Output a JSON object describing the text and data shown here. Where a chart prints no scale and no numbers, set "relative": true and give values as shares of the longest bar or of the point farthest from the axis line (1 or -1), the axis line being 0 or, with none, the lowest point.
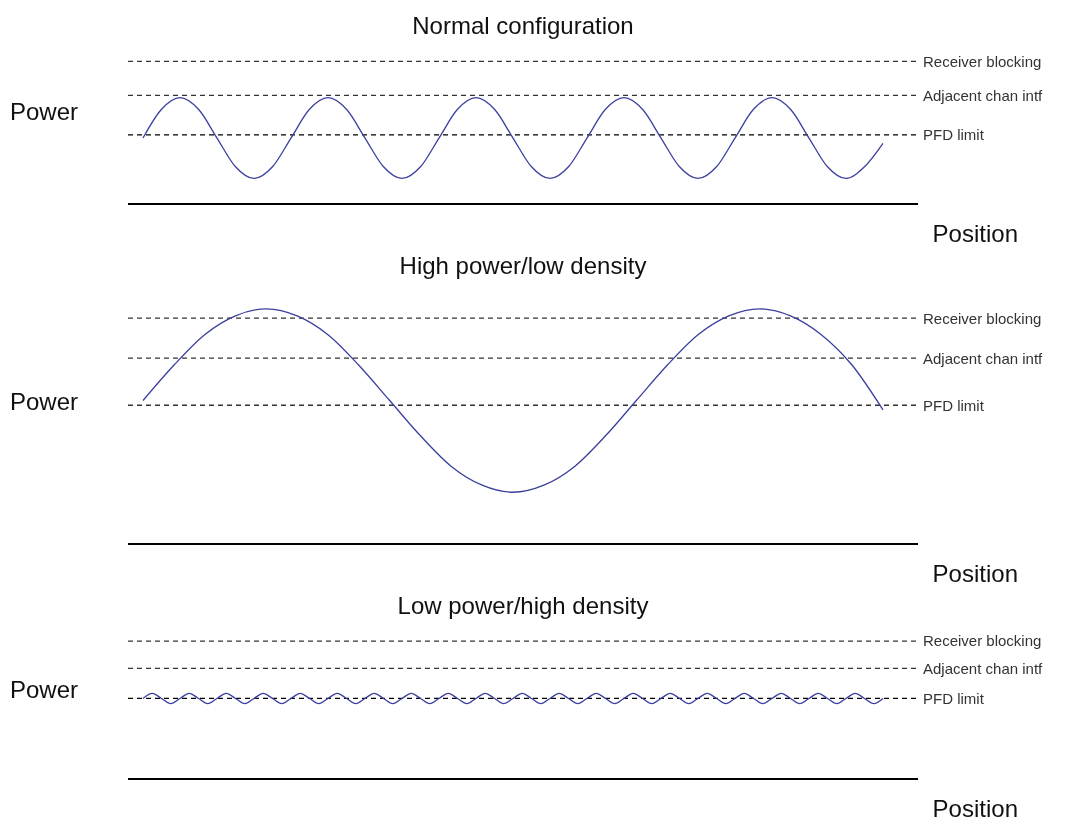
{
  "chart_data": [
    {
      "type": "line",
      "title": "Normal configuration",
      "xlabel": "Position",
      "ylabel": "Power",
      "relative": true,
      "grid": false,
      "legend": false,
      "marker": "none",
      "line_style": "solid",
      "categories": [
        null,
        null,
        null,
        null,
        null,
        null,
        null,
        null,
        null,
        null,
        null,
        null,
        null,
        null,
        null,
        null,
        null,
        null,
        null,
        null,
        null,
        null,
        null,
        null,
        null,
        null,
        null,
        null,
        null,
        null,
        null,
        null,
        null,
        null,
        null,
        null,
        null,
        null,
        null,
        null,
        null
      ],
      "series": [
        {
          "color": "#3a3f9e",
          "values": [
            0.62,
            0.89,
            1.0,
            0.89,
            0.62,
            0.35,
            0.24,
            0.35,
            0.62,
            0.89,
            1.0,
            0.89,
            0.62,
            0.35,
            0.24,
            0.35,
            0.62,
            0.89,
            1.0,
            0.89,
            0.62,
            0.35,
            0.24,
            0.35,
            0.62,
            0.89,
            1.0,
            0.89,
            0.62,
            0.35,
            0.24,
            0.35,
            0.62,
            0.89,
            1.0,
            0.89,
            0.62,
            0.35,
            0.24,
            0.35,
            0.57
          ]
        }
      ],
      "ref_lines": [
        {
          "axis": "y",
          "value": 1.34,
          "label": "Receiver blocking",
          "color": "#333333",
          "line_style": "dashed"
        },
        {
          "axis": "y",
          "value": 1.02,
          "label": "Adjacent chan intf",
          "color": "#333333",
          "line_style": "dashed"
        },
        {
          "axis": "y",
          "value": 0.65,
          "label": "PFD limit",
          "color": "#000000",
          "line_style": "dashed"
        }
      ]
    },
    {
      "type": "line",
      "title": "High power/low density",
      "xlabel": "Position",
      "ylabel": "Power",
      "relative": true,
      "grid": false,
      "legend": false,
      "marker": "none",
      "line_style": "solid",
      "categories": [
        null,
        null,
        null,
        null,
        null,
        null,
        null,
        null,
        null,
        null,
        null,
        null,
        null,
        null,
        null,
        null,
        null,
        null,
        null,
        null,
        null,
        null,
        null,
        null,
        null
      ],
      "series": [
        {
          "color": "#3a3f9e",
          "values": [
            0.61,
            0.76,
            0.89,
            0.97,
            1.0,
            0.97,
            0.89,
            0.76,
            0.61,
            0.46,
            0.33,
            0.25,
            0.22,
            0.25,
            0.33,
            0.46,
            0.61,
            0.76,
            0.89,
            0.97,
            1.0,
            0.97,
            0.89,
            0.76,
            0.57
          ]
        }
      ],
      "ref_lines": [
        {
          "axis": "y",
          "value": 0.96,
          "label": "Receiver blocking",
          "color": "#333333",
          "line_style": "dashed"
        },
        {
          "axis": "y",
          "value": 0.79,
          "label": "Adjacent chan intf",
          "color": "#333333",
          "line_style": "dashed"
        },
        {
          "axis": "y",
          "value": 0.59,
          "label": "PFD limit",
          "color": "#333333",
          "line_style": "dashed"
        }
      ]
    },
    {
      "type": "line",
      "title": "Low power/high density",
      "xlabel": "Position",
      "ylabel": "Power",
      "relative": true,
      "grid": false,
      "legend": false,
      "marker": "none",
      "line_style": "solid",
      "categories": [
        null,
        null,
        null,
        null,
        null,
        null,
        null,
        null,
        null,
        null,
        null,
        null,
        null,
        null,
        null,
        null,
        null,
        null,
        null,
        null,
        null,
        null,
        null,
        null,
        null,
        null,
        null,
        null,
        null,
        null,
        null,
        null,
        null,
        null,
        null,
        null,
        null,
        null,
        null,
        null,
        null,
        null,
        null,
        null,
        null,
        null,
        null,
        null,
        null,
        null,
        null,
        null,
        null,
        null,
        null,
        null,
        null,
        null,
        null,
        null,
        null,
        null,
        null,
        null,
        null,
        null,
        null,
        null,
        null,
        null,
        null,
        null,
        null,
        null,
        null,
        null,
        null,
        null,
        null,
        null,
        null
      ],
      "series": [
        {
          "color": "#3a3f9e",
          "values": [
            0.94,
            1.0,
            0.94,
            0.88,
            0.94,
            1.0,
            0.94,
            0.88,
            0.94,
            1.0,
            0.94,
            0.88,
            0.94,
            1.0,
            0.94,
            0.88,
            0.94,
            1.0,
            0.94,
            0.88,
            0.94,
            1.0,
            0.94,
            0.88,
            0.94,
            1.0,
            0.94,
            0.88,
            0.94,
            1.0,
            0.94,
            0.88,
            0.94,
            1.0,
            0.94,
            0.88,
            0.94,
            1.0,
            0.94,
            0.88,
            0.94,
            1.0,
            0.94,
            0.88,
            0.94,
            1.0,
            0.94,
            0.88,
            0.94,
            1.0,
            0.94,
            0.88,
            0.94,
            1.0,
            0.94,
            0.88,
            0.94,
            1.0,
            0.94,
            0.88,
            0.94,
            1.0,
            0.94,
            0.88,
            0.94,
            1.0,
            0.94,
            0.88,
            0.94,
            1.0,
            0.94,
            0.88,
            0.94,
            1.0,
            0.94,
            0.88,
            0.94,
            1.0,
            0.94,
            0.88,
            0.94
          ]
        }
      ],
      "ref_lines": [
        {
          "axis": "y",
          "value": 1.61,
          "label": "Receiver blocking",
          "color": "#333333",
          "line_style": "dashed"
        },
        {
          "axis": "y",
          "value": 1.29,
          "label": "Adjacent chan intf",
          "color": "#333333",
          "line_style": "dashed"
        },
        {
          "axis": "y",
          "value": 0.94,
          "label": "PFD limit",
          "color": "#000000",
          "line_style": "dashed"
        }
      ]
    }
  ]
}
